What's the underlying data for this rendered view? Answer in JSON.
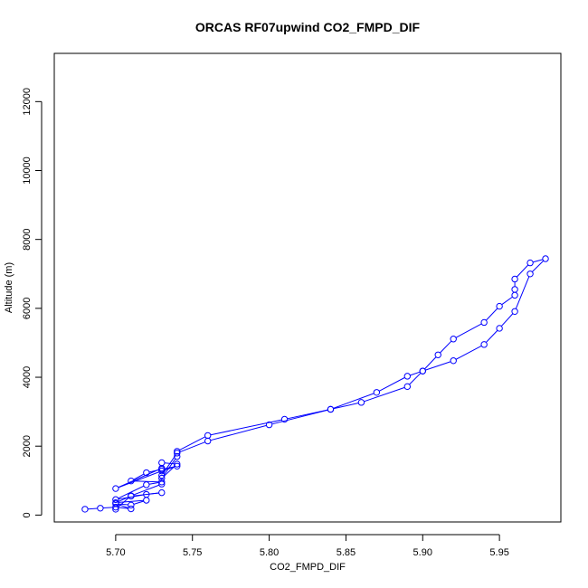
{
  "chart_data": {
    "type": "line",
    "title": "ORCAS RF07upwind CO2_FMPD_DIF",
    "xlabel": "CO2_FMPD_DIF",
    "ylabel": "Altitude (m)",
    "xlim": [
      5.66,
      5.99
    ],
    "ylim": [
      -200,
      13400
    ],
    "xticks": [
      5.7,
      5.75,
      5.8,
      5.85,
      5.9,
      5.95
    ],
    "xtick_labels": [
      "5.70",
      "5.75",
      "5.80",
      "5.85",
      "5.90",
      "5.95"
    ],
    "yticks": [
      0,
      2000,
      4000,
      6000,
      8000,
      10000,
      12000
    ],
    "ytick_labels": [
      "0",
      "2000",
      "4000",
      "6000",
      "8000",
      "10000",
      "12000"
    ],
    "grid": false,
    "marker": "open-circle",
    "series": [
      {
        "color": "#0000ff",
        "points": [
          [
            5.68,
            170
          ],
          [
            5.69,
            200
          ],
          [
            5.7,
            230
          ],
          [
            5.71,
            180
          ],
          [
            5.7,
            330
          ],
          [
            5.71,
            290
          ],
          [
            5.72,
            430
          ],
          [
            5.7,
            360
          ],
          [
            5.71,
            550
          ],
          [
            5.73,
            650
          ],
          [
            5.72,
            600
          ],
          [
            5.7,
            450
          ],
          [
            5.72,
            880
          ],
          [
            5.73,
            960
          ],
          [
            5.71,
            990
          ],
          [
            5.72,
            1230
          ],
          [
            5.73,
            1330
          ],
          [
            5.74,
            1420
          ],
          [
            5.73,
            1280
          ],
          [
            5.7,
            770
          ],
          [
            5.73,
            1360
          ],
          [
            5.73,
            1520
          ],
          [
            5.74,
            1480
          ],
          [
            5.73,
            1070
          ],
          [
            5.74,
            1700
          ],
          [
            5.74,
            1850
          ],
          [
            5.76,
            2310
          ],
          [
            5.81,
            2780
          ],
          [
            5.84,
            3070
          ],
          [
            5.87,
            3560
          ],
          [
            5.89,
            4030
          ],
          [
            5.9,
            4180
          ],
          [
            5.91,
            4650
          ],
          [
            5.92,
            5110
          ],
          [
            5.94,
            5590
          ],
          [
            5.95,
            6060
          ],
          [
            5.96,
            6380
          ],
          [
            5.96,
            6550
          ],
          [
            5.96,
            6850
          ],
          [
            5.97,
            7320
          ],
          [
            5.98,
            7440
          ],
          [
            5.97,
            7000
          ],
          [
            5.96,
            5910
          ],
          [
            5.95,
            5420
          ],
          [
            5.94,
            4950
          ],
          [
            5.92,
            4480
          ],
          [
            5.9,
            4180
          ],
          [
            5.89,
            3730
          ],
          [
            5.86,
            3270
          ],
          [
            5.84,
            3070
          ],
          [
            5.8,
            2620
          ],
          [
            5.76,
            2150
          ],
          [
            5.74,
            1800
          ],
          [
            5.73,
            1150
          ],
          [
            5.73,
            900
          ],
          [
            5.71,
            560
          ],
          [
            5.7,
            170
          ]
        ]
      }
    ]
  }
}
